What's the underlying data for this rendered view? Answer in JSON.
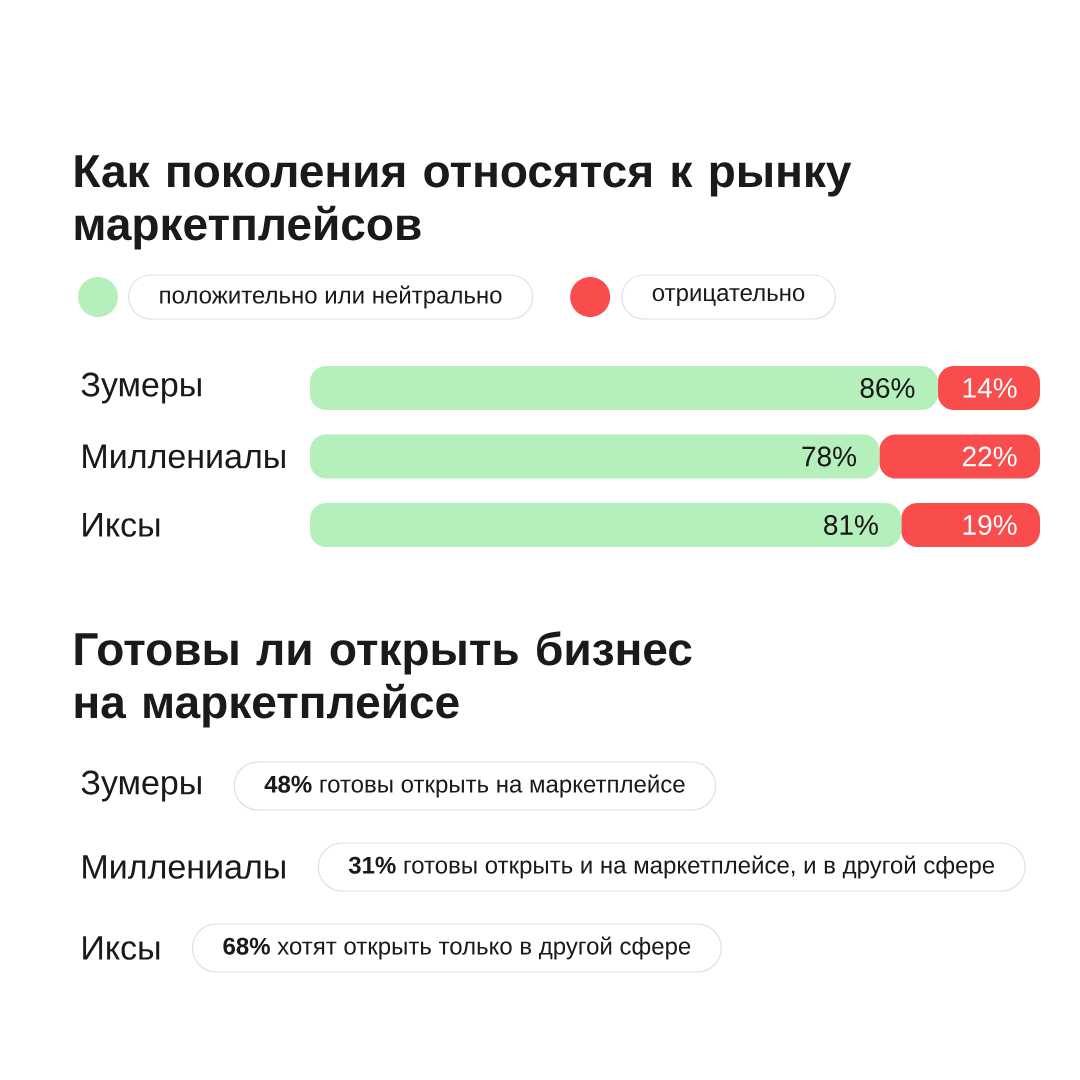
{
  "chart_data": [
    {
      "type": "bar",
      "orientation": "horizontal",
      "stacked": true,
      "title": "Как поколения относятся к рынку маркетплейсов",
      "categories": [
        "Зумеры",
        "Миллениалы",
        "Иксы"
      ],
      "series": [
        {
          "name": "положительно или нейтрально",
          "color": "#b5efbb",
          "values": [
            86,
            78,
            81
          ],
          "value_labels": [
            "86%",
            "78%",
            "81%"
          ]
        },
        {
          "name": "отрицательно",
          "color": "#f94c4c",
          "values": [
            14,
            22,
            19
          ],
          "value_labels": [
            "14%",
            "22%",
            "19%"
          ]
        }
      ],
      "tick_labels": "y",
      "legend": "top left"
    },
    {
      "type": "other",
      "title": "Готовы ли открыть бизнес на маркетплейсе",
      "categories": [
        "Зумеры",
        "Миллениалы",
        "Иксы"
      ],
      "annotations": [
        "**48%** готовы открыть на маркетплейсе",
        "**31%** готовы открыть и на маркетплейсе, и в другой сфере",
        "**68%** хотят открыть только в другой сфере"
      ]
    }
  ]
}
